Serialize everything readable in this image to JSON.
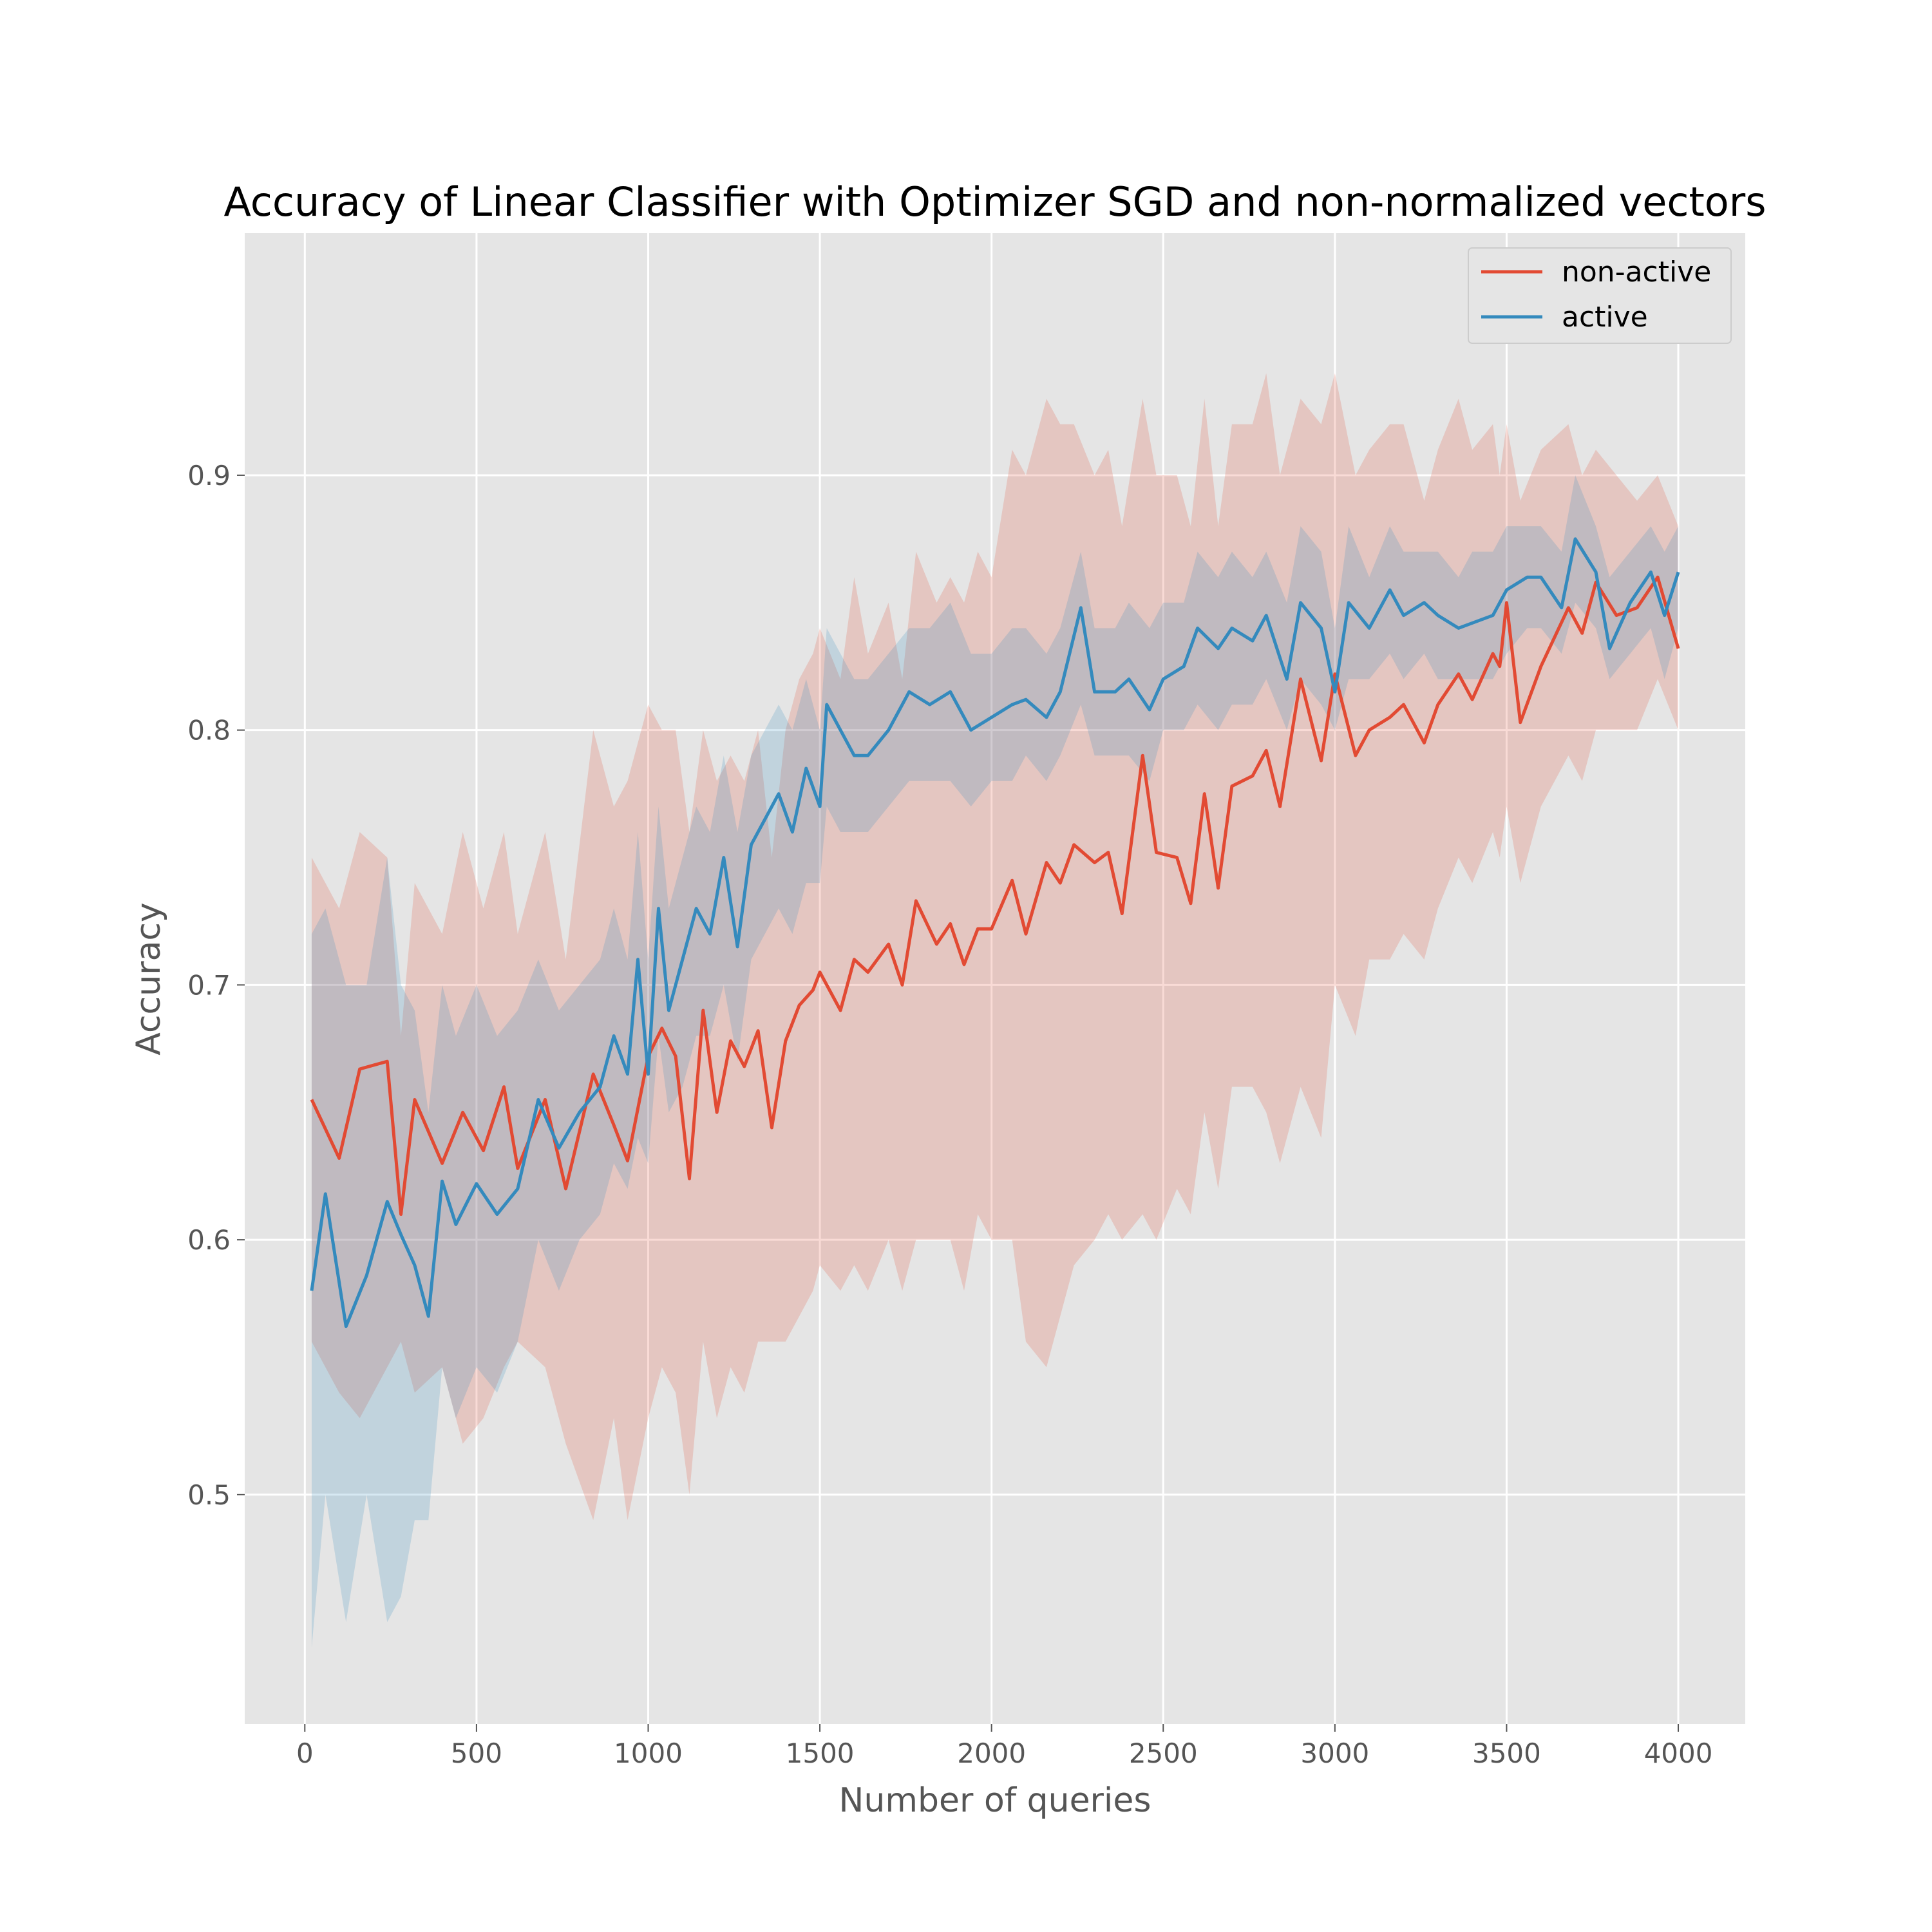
{
  "chart_data": {
    "type": "line",
    "title": "Accuracy of Linear Classifier with Optimizer SGD and non-normalized vectors",
    "xlabel": "Number of queries",
    "ylabel": "Accuracy",
    "xlim": [
      -175,
      4195
    ],
    "ylim": [
      0.41,
      0.995
    ],
    "xticks": [
      0,
      500,
      1000,
      1500,
      2000,
      2500,
      3000,
      3500,
      4000
    ],
    "yticks": [
      0.5,
      0.6,
      0.7,
      0.8,
      0.9
    ],
    "xtick_labels": [
      "0",
      "500",
      "1000",
      "1500",
      "2000",
      "2500",
      "3000",
      "3500",
      "4000"
    ],
    "ytick_labels": [
      "0.5",
      "0.6",
      "0.7",
      "0.8",
      "0.9"
    ],
    "grid": true,
    "legend_position": "top-right",
    "legend_label": "legend",
    "series": [
      {
        "name": "non-active",
        "color": "#E24A33",
        "band_color": "#E24A33",
        "x": [
          20,
          100,
          160,
          240,
          280,
          320,
          400,
          460,
          520,
          580,
          620,
          700,
          760,
          840,
          900,
          940,
          1000,
          1040,
          1080,
          1120,
          1160,
          1200,
          1240,
          1280,
          1320,
          1360,
          1400,
          1440,
          1480,
          1500,
          1560,
          1600,
          1640,
          1700,
          1740,
          1780,
          1840,
          1880,
          1920,
          1960,
          2000,
          2060,
          2100,
          2160,
          2200,
          2240,
          2300,
          2340,
          2380,
          2440,
          2480,
          2540,
          2580,
          2620,
          2660,
          2700,
          2760,
          2800,
          2840,
          2900,
          2960,
          3000,
          3060,
          3100,
          3160,
          3200,
          3260,
          3300,
          3360,
          3400,
          3460,
          3480,
          3500,
          3540,
          3600,
          3680,
          3720,
          3760,
          3820,
          3880,
          3940,
          4000
        ],
        "values": [
          0.655,
          0.632,
          0.667,
          0.67,
          0.61,
          0.655,
          0.63,
          0.65,
          0.635,
          0.66,
          0.628,
          0.655,
          0.62,
          0.665,
          0.645,
          0.631,
          0.672,
          0.683,
          0.672,
          0.624,
          0.69,
          0.65,
          0.678,
          0.668,
          0.682,
          0.644,
          0.678,
          0.692,
          0.698,
          0.705,
          0.69,
          0.71,
          0.705,
          0.716,
          0.7,
          0.733,
          0.716,
          0.724,
          0.708,
          0.722,
          0.722,
          0.741,
          0.72,
          0.748,
          0.74,
          0.755,
          0.748,
          0.752,
          0.728,
          0.79,
          0.752,
          0.75,
          0.732,
          0.775,
          0.738,
          0.778,
          0.782,
          0.792,
          0.77,
          0.82,
          0.788,
          0.822,
          0.79,
          0.8,
          0.805,
          0.81,
          0.795,
          0.81,
          0.822,
          0.812,
          0.83,
          0.825,
          0.85,
          0.803,
          0.825,
          0.848,
          0.838,
          0.858,
          0.845,
          0.848,
          0.86,
          0.832
        ],
        "lower": [
          0.56,
          0.54,
          0.53,
          0.55,
          0.56,
          0.54,
          0.55,
          0.52,
          0.53,
          0.55,
          0.56,
          0.55,
          0.52,
          0.49,
          0.53,
          0.49,
          0.53,
          0.55,
          0.54,
          0.5,
          0.56,
          0.53,
          0.55,
          0.54,
          0.56,
          0.56,
          0.56,
          0.57,
          0.58,
          0.59,
          0.58,
          0.59,
          0.58,
          0.6,
          0.58,
          0.6,
          0.6,
          0.6,
          0.58,
          0.61,
          0.6,
          0.6,
          0.56,
          0.55,
          0.57,
          0.59,
          0.6,
          0.61,
          0.6,
          0.61,
          0.6,
          0.62,
          0.61,
          0.65,
          0.62,
          0.66,
          0.66,
          0.65,
          0.63,
          0.66,
          0.64,
          0.7,
          0.68,
          0.71,
          0.71,
          0.72,
          0.71,
          0.73,
          0.75,
          0.74,
          0.76,
          0.75,
          0.77,
          0.74,
          0.77,
          0.79,
          0.78,
          0.8,
          0.8,
          0.8,
          0.82,
          0.8
        ],
        "upper": [
          0.75,
          0.73,
          0.76,
          0.75,
          0.68,
          0.74,
          0.72,
          0.76,
          0.73,
          0.76,
          0.72,
          0.76,
          0.71,
          0.8,
          0.77,
          0.78,
          0.81,
          0.8,
          0.8,
          0.76,
          0.8,
          0.78,
          0.79,
          0.78,
          0.8,
          0.75,
          0.8,
          0.82,
          0.83,
          0.84,
          0.82,
          0.86,
          0.83,
          0.85,
          0.82,
          0.87,
          0.85,
          0.86,
          0.85,
          0.87,
          0.86,
          0.91,
          0.9,
          0.93,
          0.92,
          0.92,
          0.9,
          0.91,
          0.88,
          0.93,
          0.9,
          0.9,
          0.88,
          0.93,
          0.88,
          0.92,
          0.92,
          0.94,
          0.9,
          0.93,
          0.92,
          0.94,
          0.9,
          0.91,
          0.92,
          0.92,
          0.89,
          0.91,
          0.93,
          0.91,
          0.92,
          0.9,
          0.92,
          0.89,
          0.91,
          0.92,
          0.9,
          0.91,
          0.9,
          0.89,
          0.9,
          0.88
        ]
      },
      {
        "name": "active",
        "color": "#348ABD",
        "band_color": "#348ABD",
        "x": [
          20,
          60,
          120,
          180,
          240,
          280,
          320,
          360,
          400,
          440,
          500,
          560,
          620,
          680,
          740,
          800,
          860,
          900,
          940,
          970,
          1000,
          1030,
          1060,
          1100,
          1140,
          1180,
          1220,
          1260,
          1300,
          1340,
          1380,
          1420,
          1460,
          1500,
          1520,
          1560,
          1600,
          1640,
          1700,
          1760,
          1820,
          1880,
          1940,
          2000,
          2060,
          2100,
          2160,
          2200,
          2260,
          2300,
          2360,
          2400,
          2460,
          2500,
          2560,
          2600,
          2660,
          2700,
          2760,
          2800,
          2860,
          2900,
          2960,
          3000,
          3040,
          3100,
          3160,
          3200,
          3260,
          3300,
          3360,
          3400,
          3460,
          3500,
          3560,
          3600,
          3660,
          3700,
          3760,
          3800,
          3860,
          3920,
          3960,
          4000
        ],
        "values": [
          0.58,
          0.618,
          0.566,
          0.586,
          0.615,
          0.602,
          0.59,
          0.57,
          0.623,
          0.606,
          0.622,
          0.61,
          0.62,
          0.655,
          0.636,
          0.65,
          0.66,
          0.68,
          0.665,
          0.71,
          0.665,
          0.73,
          0.69,
          0.71,
          0.73,
          0.72,
          0.75,
          0.715,
          0.755,
          0.765,
          0.775,
          0.76,
          0.785,
          0.77,
          0.81,
          0.8,
          0.79,
          0.79,
          0.8,
          0.815,
          0.81,
          0.815,
          0.8,
          0.805,
          0.81,
          0.812,
          0.805,
          0.815,
          0.848,
          0.815,
          0.815,
          0.82,
          0.808,
          0.82,
          0.825,
          0.84,
          0.832,
          0.84,
          0.835,
          0.845,
          0.82,
          0.85,
          0.84,
          0.815,
          0.85,
          0.84,
          0.855,
          0.845,
          0.85,
          0.845,
          0.84,
          0.842,
          0.845,
          0.855,
          0.86,
          0.86,
          0.848,
          0.875,
          0.862,
          0.832,
          0.85,
          0.862,
          0.845,
          0.862
        ],
        "lower": [
          0.44,
          0.5,
          0.45,
          0.5,
          0.45,
          0.46,
          0.49,
          0.49,
          0.55,
          0.53,
          0.55,
          0.54,
          0.56,
          0.6,
          0.58,
          0.6,
          0.61,
          0.63,
          0.62,
          0.64,
          0.63,
          0.68,
          0.65,
          0.66,
          0.68,
          0.68,
          0.7,
          0.67,
          0.71,
          0.72,
          0.73,
          0.72,
          0.74,
          0.74,
          0.77,
          0.76,
          0.76,
          0.76,
          0.77,
          0.78,
          0.78,
          0.78,
          0.77,
          0.78,
          0.78,
          0.79,
          0.78,
          0.79,
          0.81,
          0.79,
          0.79,
          0.79,
          0.78,
          0.8,
          0.8,
          0.81,
          0.8,
          0.81,
          0.81,
          0.82,
          0.8,
          0.82,
          0.81,
          0.8,
          0.82,
          0.82,
          0.83,
          0.82,
          0.83,
          0.82,
          0.82,
          0.82,
          0.82,
          0.83,
          0.84,
          0.84,
          0.83,
          0.85,
          0.84,
          0.82,
          0.83,
          0.84,
          0.82,
          0.84
        ],
        "upper": [
          0.72,
          0.73,
          0.7,
          0.7,
          0.75,
          0.7,
          0.69,
          0.65,
          0.7,
          0.68,
          0.7,
          0.68,
          0.69,
          0.71,
          0.69,
          0.7,
          0.71,
          0.73,
          0.71,
          0.76,
          0.71,
          0.77,
          0.73,
          0.75,
          0.77,
          0.76,
          0.79,
          0.76,
          0.79,
          0.8,
          0.81,
          0.8,
          0.82,
          0.8,
          0.84,
          0.83,
          0.82,
          0.82,
          0.83,
          0.84,
          0.84,
          0.85,
          0.83,
          0.83,
          0.84,
          0.84,
          0.83,
          0.84,
          0.87,
          0.84,
          0.84,
          0.85,
          0.84,
          0.85,
          0.85,
          0.87,
          0.86,
          0.87,
          0.86,
          0.87,
          0.85,
          0.88,
          0.87,
          0.84,
          0.88,
          0.86,
          0.88,
          0.87,
          0.87,
          0.87,
          0.86,
          0.87,
          0.87,
          0.88,
          0.88,
          0.88,
          0.87,
          0.9,
          0.88,
          0.86,
          0.87,
          0.88,
          0.87,
          0.88
        ]
      }
    ]
  }
}
